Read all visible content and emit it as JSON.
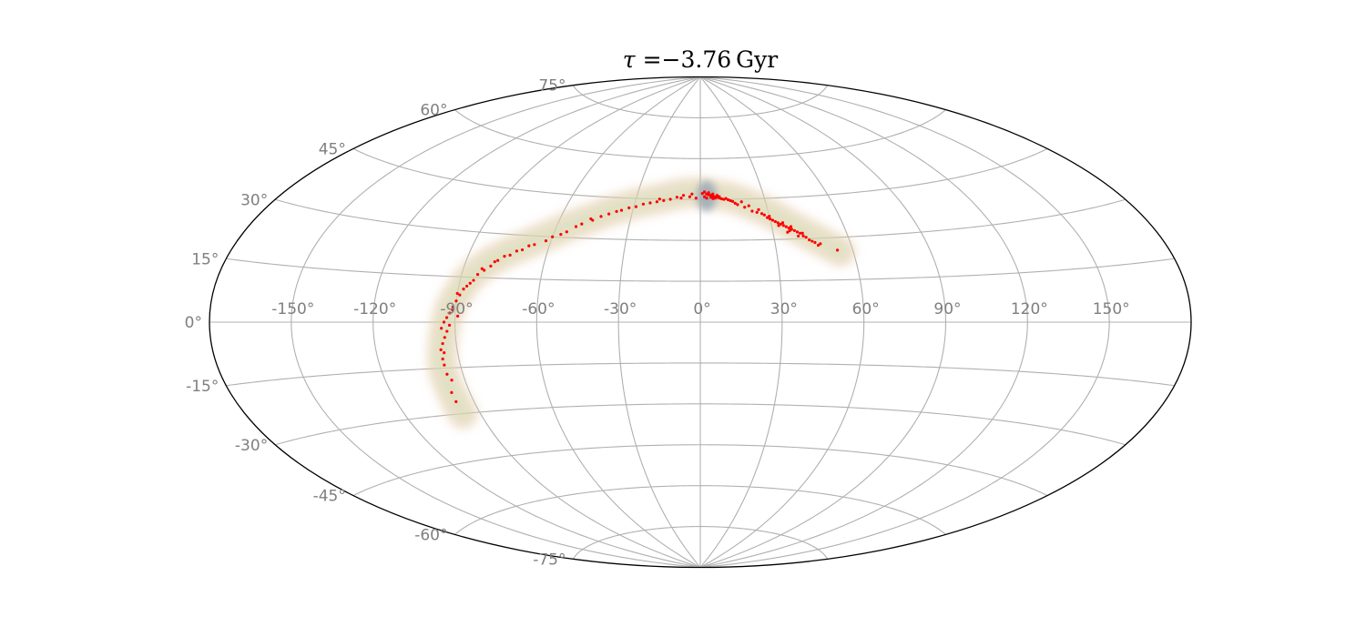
{
  "chart_data": {
    "type": "scatter",
    "projection": "aitoff",
    "title_symbol": "τ",
    "title_equals": " =",
    "title_value": "−3.76",
    "title_unit": "Gyr",
    "xlim": [
      -180,
      180
    ],
    "ylim": [
      -90,
      90
    ],
    "grid": true,
    "x_ticks": [
      {
        "value": -150,
        "label": "-150°"
      },
      {
        "value": -120,
        "label": "-120°"
      },
      {
        "value": -90,
        "label": "-90°"
      },
      {
        "value": -60,
        "label": "-60°"
      },
      {
        "value": -30,
        "label": "-30°"
      },
      {
        "value": 0,
        "label": "0°"
      },
      {
        "value": 30,
        "label": "30°"
      },
      {
        "value": 60,
        "label": "60°"
      },
      {
        "value": 90,
        "label": "90°"
      },
      {
        "value": 120,
        "label": "120°"
      },
      {
        "value": 150,
        "label": "150°"
      }
    ],
    "y_ticks": [
      {
        "value": 75,
        "label": "75°"
      },
      {
        "value": 60,
        "label": "60°"
      },
      {
        "value": 45,
        "label": "45°"
      },
      {
        "value": 30,
        "label": "30°"
      },
      {
        "value": 15,
        "label": "15°"
      },
      {
        "value": 0,
        "label": "0°"
      },
      {
        "value": -15,
        "label": "-15°"
      },
      {
        "value": -30,
        "label": "-30°"
      },
      {
        "value": -45,
        "label": "-45°"
      },
      {
        "value": -60,
        "label": "-60°"
      },
      {
        "value": -75,
        "label": "-75°"
      }
    ],
    "colors": {
      "points": "#ff0000",
      "halo": "#e3c9a6",
      "core": "#8fa0b3",
      "grid": "#b0b0b0",
      "frame": "#000000",
      "tick_labels": "#7f7f7f"
    },
    "stream_track": [
      [
        55,
        25
      ],
      [
        50,
        28
      ],
      [
        45,
        31
      ],
      [
        40,
        34
      ],
      [
        35,
        37
      ],
      [
        30,
        40
      ],
      [
        25,
        42
      ],
      [
        20,
        44
      ],
      [
        15,
        45.5
      ],
      [
        10,
        46.5
      ],
      [
        5,
        47
      ],
      [
        0,
        47.5
      ],
      [
        -5,
        47.5
      ],
      [
        -10,
        47
      ],
      [
        -15,
        46
      ],
      [
        -20,
        45
      ],
      [
        -25,
        44
      ],
      [
        -30,
        43
      ],
      [
        -35,
        41.5
      ],
      [
        -40,
        40
      ],
      [
        -45,
        38
      ],
      [
        -50,
        36
      ],
      [
        -55,
        34
      ],
      [
        -60,
        31.5
      ],
      [
        -65,
        29
      ],
      [
        -70,
        26.5
      ],
      [
        -75,
        24
      ],
      [
        -80,
        21
      ],
      [
        -85,
        17
      ],
      [
        -88,
        13
      ],
      [
        -90,
        9
      ],
      [
        -92,
        5
      ],
      [
        -93,
        1
      ],
      [
        -94,
        -3
      ],
      [
        -95,
        -7
      ],
      [
        -96,
        -11
      ],
      [
        -97,
        -15
      ],
      [
        -97,
        -19
      ],
      [
        -97,
        -23
      ],
      [
        -97,
        -27
      ],
      [
        -97,
        -30
      ]
    ],
    "points": [
      [
        3,
        47
      ],
      [
        4,
        46.7
      ],
      [
        5,
        46.6
      ],
      [
        6,
        46.2
      ],
      [
        7,
        46
      ],
      [
        8,
        45.8
      ],
      [
        9,
        45.5
      ],
      [
        10,
        45.2
      ],
      [
        4,
        47.5
      ],
      [
        6,
        47
      ],
      [
        8,
        46.5
      ],
      [
        2,
        46
      ],
      [
        5,
        45.8
      ],
      [
        7,
        45.5
      ],
      [
        3,
        45.5
      ],
      [
        11,
        45
      ],
      [
        12,
        45.3
      ],
      [
        13,
        44.8
      ],
      [
        14,
        44.5
      ],
      [
        15,
        44.2
      ],
      [
        2,
        47.8
      ],
      [
        1,
        47.2
      ],
      [
        6,
        45.3
      ],
      [
        9,
        46
      ],
      [
        17,
        43
      ],
      [
        20,
        42
      ],
      [
        23,
        40.5
      ],
      [
        25,
        40
      ],
      [
        27,
        39.5
      ],
      [
        29,
        38
      ],
      [
        30,
        38.5
      ],
      [
        31,
        37
      ],
      [
        32,
        36.5
      ],
      [
        33,
        36
      ],
      [
        34,
        35.5
      ],
      [
        35,
        35
      ],
      [
        36,
        34.5
      ],
      [
        37,
        34
      ],
      [
        38,
        33.5
      ],
      [
        39,
        33
      ],
      [
        40,
        32.5
      ],
      [
        41,
        32
      ],
      [
        42,
        31
      ],
      [
        43,
        30.5
      ],
      [
        44,
        29.5
      ],
      [
        45,
        29
      ],
      [
        46,
        28.5
      ],
      [
        48,
        28
      ],
      [
        30,
        37.5
      ],
      [
        33,
        35
      ],
      [
        35,
        36
      ],
      [
        37,
        33
      ],
      [
        40,
        31
      ],
      [
        42,
        32
      ],
      [
        47,
        27.5
      ],
      [
        54,
        25.5
      ],
      [
        36,
        32.5
      ],
      [
        38,
        34.5
      ],
      [
        26,
        41
      ],
      [
        28,
        39
      ],
      [
        -2,
        45.5
      ],
      [
        -5,
        46
      ],
      [
        -8,
        46.5
      ],
      [
        -11,
        45.8
      ],
      [
        -14,
        45
      ],
      [
        -17,
        44.5
      ],
      [
        -20,
        44
      ],
      [
        -23,
        43.5
      ],
      [
        -26,
        43
      ],
      [
        -29,
        42
      ],
      [
        -32,
        41.5
      ],
      [
        -35,
        40.5
      ],
      [
        -40,
        39
      ],
      [
        -43,
        38
      ],
      [
        -46,
        36.5
      ],
      [
        -50,
        35
      ],
      [
        -55,
        32
      ],
      [
        -60,
        30
      ],
      [
        -66,
        27
      ],
      [
        -70,
        25
      ],
      [
        -72,
        24.5
      ],
      [
        -76,
        22.5
      ],
      [
        -79,
        20.5
      ],
      [
        -80,
        19
      ],
      [
        -82,
        17.5
      ],
      [
        -84,
        16
      ],
      [
        -85,
        14
      ],
      [
        -87,
        12
      ],
      [
        -88,
        11
      ],
      [
        -89,
        9
      ],
      [
        -90,
        7
      ],
      [
        -91,
        5
      ],
      [
        -92,
        3
      ],
      [
        -93,
        1.5
      ],
      [
        -94,
        0
      ],
      [
        -95,
        -2
      ],
      [
        -93,
        -3
      ],
      [
        -94,
        -5
      ],
      [
        -95,
        -7
      ],
      [
        -96,
        -9
      ],
      [
        -95,
        -10
      ],
      [
        -96,
        -12
      ],
      [
        -96,
        -14
      ],
      [
        -96,
        -17
      ],
      [
        -95,
        -19
      ],
      [
        -97,
        -23
      ],
      [
        -97,
        -26
      ],
      [
        -91,
        4
      ],
      [
        -89,
        2
      ],
      [
        -92,
        -1
      ],
      [
        -90,
        9.5
      ],
      [
        -86,
        13
      ],
      [
        -83,
        18
      ],
      [
        -78,
        21
      ],
      [
        -74,
        23
      ],
      [
        -68,
        26.5
      ],
      [
        -62,
        28.5
      ],
      [
        -57,
        31
      ],
      [
        -52,
        34
      ],
      [
        -47,
        37
      ],
      [
        -37,
        40
      ],
      [
        -19,
        45
      ],
      [
        -9,
        45.5
      ],
      [
        -4,
        47
      ],
      [
        16,
        43.5
      ],
      [
        19,
        44
      ],
      [
        22,
        42.5
      ]
    ]
  }
}
